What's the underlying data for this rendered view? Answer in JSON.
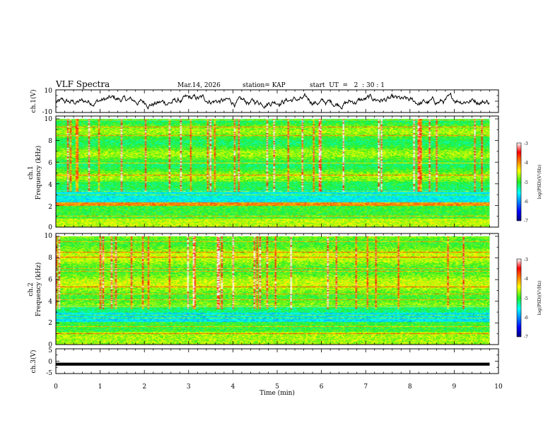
{
  "header": {
    "title": "VLF Spectra",
    "date": "Mar.14, 2026",
    "station": "station= KAP",
    "start": "start  UT  =   2  : 30 : 1"
  },
  "chart_data": [
    {
      "type": "line",
      "name": "ch1-waveform",
      "ylabel": "ch.1(V)",
      "ylim": [
        -10,
        10
      ],
      "ytick_labels": [
        "-10",
        "10"
      ],
      "xlim": [
        0,
        10
      ],
      "data_end_min": 9.8,
      "description_values": "noisy waveform fluctuating roughly between -7 and 8 V"
    },
    {
      "type": "heatmap",
      "name": "ch1-spectrogram",
      "ylabel": "ch.1\nFrequency  (kHz)",
      "ylabel_line1": "ch.1",
      "ylabel_line2": "Frequency  (kHz)",
      "ylim": [
        0,
        10
      ],
      "ytick_labels": [
        "0",
        "2",
        "4",
        "6",
        "8",
        "10"
      ],
      "xlim": [
        0,
        10
      ],
      "colorbar": {
        "label": "log(PSD)(V²/Hz)",
        "range": [
          -7,
          -3
        ],
        "ticks": [
          "-7",
          "-6",
          "-5",
          "-4",
          "-3"
        ]
      }
    },
    {
      "type": "heatmap",
      "name": "ch2-spectrogram",
      "ylabel_line1": "ch.2",
      "ylabel_line2": "Frequency  (kHz)",
      "ylim": [
        0,
        10
      ],
      "ytick_labels": [
        "0",
        "2",
        "4",
        "6",
        "8",
        "10"
      ],
      "xlim": [
        0,
        10
      ],
      "colorbar": {
        "label": "log(PSD)(V²/Hz)",
        "range": [
          -7,
          -3
        ],
        "ticks": [
          "-7",
          "-6",
          "-5",
          "-4",
          "-3"
        ]
      }
    },
    {
      "type": "line",
      "name": "ch3-waveform",
      "ylabel": "ch.3(V)",
      "ylim": [
        -5,
        5
      ],
      "ytick_labels": [
        "-5",
        "0",
        "5"
      ],
      "xlim": [
        0,
        10
      ],
      "level_band": [
        -0.6,
        -1.8
      ]
    }
  ],
  "xaxis": {
    "label": "Time  (min)",
    "ticks": [
      "0",
      "1",
      "2",
      "3",
      "4",
      "5",
      "6",
      "7",
      "8",
      "9",
      "10"
    ]
  }
}
